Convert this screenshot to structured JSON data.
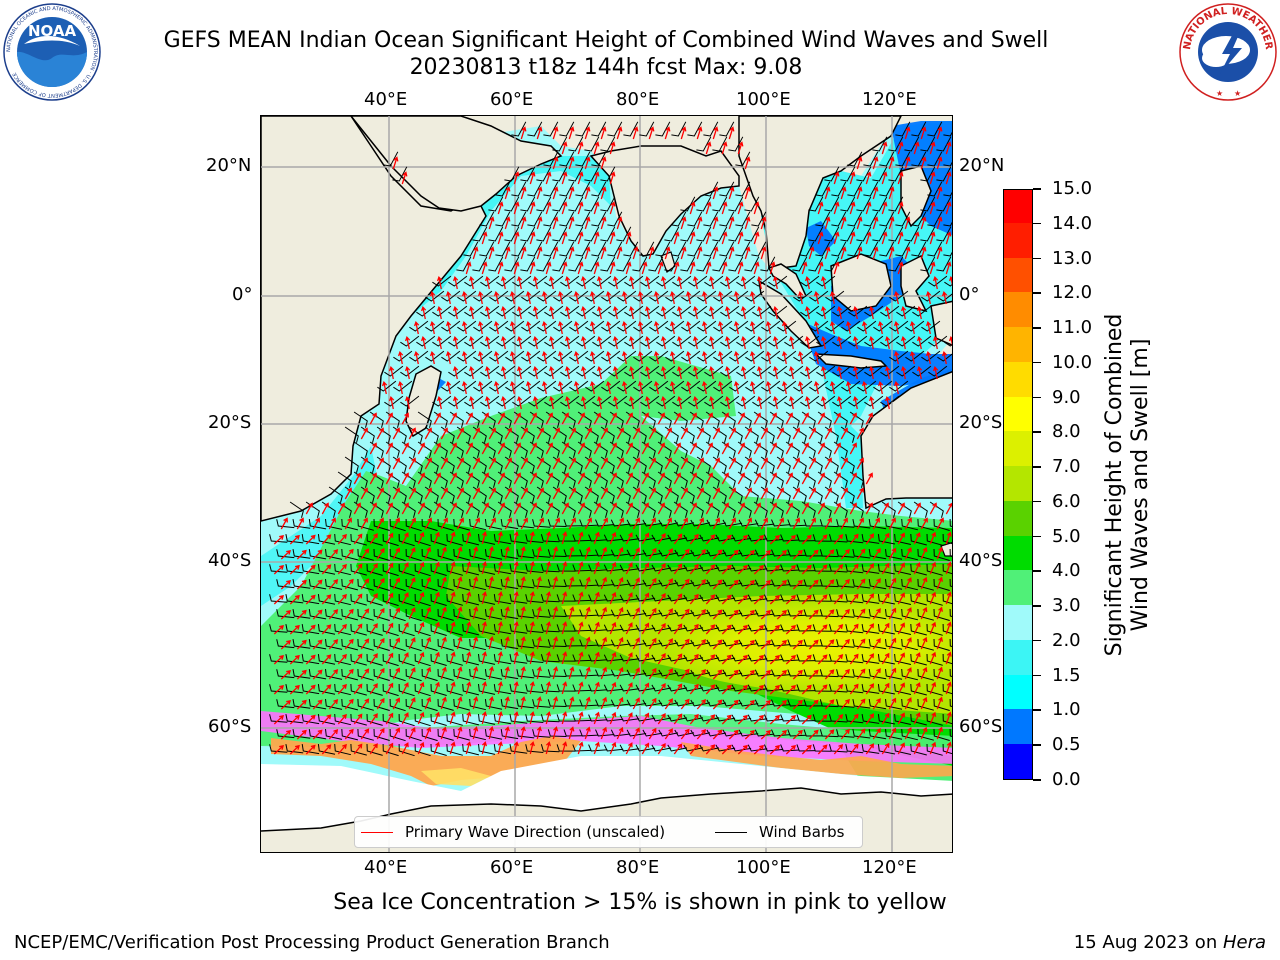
{
  "header": {
    "title_line1": "GEFS MEAN Indian Ocean Significant Height of Combined Wind Waves and Swell",
    "title_line2": "20230813 t18z 144h fcst   Max: 9.08"
  },
  "logos": {
    "noaa_text": "NOAA",
    "noaa_ring_text": "NATIONAL OCEANIC AND ATMOSPHERIC ADMINISTRATION · U.S. DEPARTMENT OF COMMERCE",
    "nws_ring_text": "NATIONAL WEATHER SERVICE"
  },
  "map": {
    "region": "Indian Ocean",
    "lon_ticks_top": [
      "40°E",
      "60°E",
      "80°E",
      "100°E",
      "120°E"
    ],
    "lon_ticks_bottom": [
      "40°E",
      "60°E",
      "80°E",
      "100°E",
      "120°E"
    ],
    "lat_ticks_left": [
      "20°N",
      "0°",
      "20°S",
      "40°S",
      "60°S"
    ],
    "lat_ticks_right": [
      "20°N",
      "0°",
      "20°S",
      "40°S",
      "60°S"
    ],
    "land_color": "#efedde",
    "grid": true
  },
  "legend": {
    "wave_label": "Primary Wave Direction (unscaled)",
    "wave_color": "#ff0000",
    "barb_label": "Wind Barbs",
    "barb_color": "#000000"
  },
  "colorbar": {
    "title_line1": "Significant Height of Combined",
    "title_line2": "Wind Waves and Swell [m]",
    "levels": [
      "0.0",
      "0.5",
      "1.0",
      "1.5",
      "2.0",
      "3.0",
      "4.0",
      "5.0",
      "6.0",
      "7.0",
      "8.0",
      "9.0",
      "10.0",
      "11.0",
      "12.0",
      "13.0",
      "14.0",
      "15.0"
    ],
    "colors": [
      "#0000ff",
      "#0078ff",
      "#00ffff",
      "#3cf5f5",
      "#a0fafa",
      "#50f078",
      "#00dc00",
      "#5ad200",
      "#b4e600",
      "#dcf000",
      "#ffff00",
      "#ffdc00",
      "#ffb400",
      "#ff8c00",
      "#ff5000",
      "#ff1e00",
      "#ff0000"
    ]
  },
  "footer": {
    "note": "Sea Ice Concentration > 15% is shown in pink to yellow",
    "credit_left": "NCEP/EMC/Verification Post Processing Product Generation Branch",
    "credit_date": "15 Aug 2023 on ",
    "credit_host": "Hera"
  }
}
